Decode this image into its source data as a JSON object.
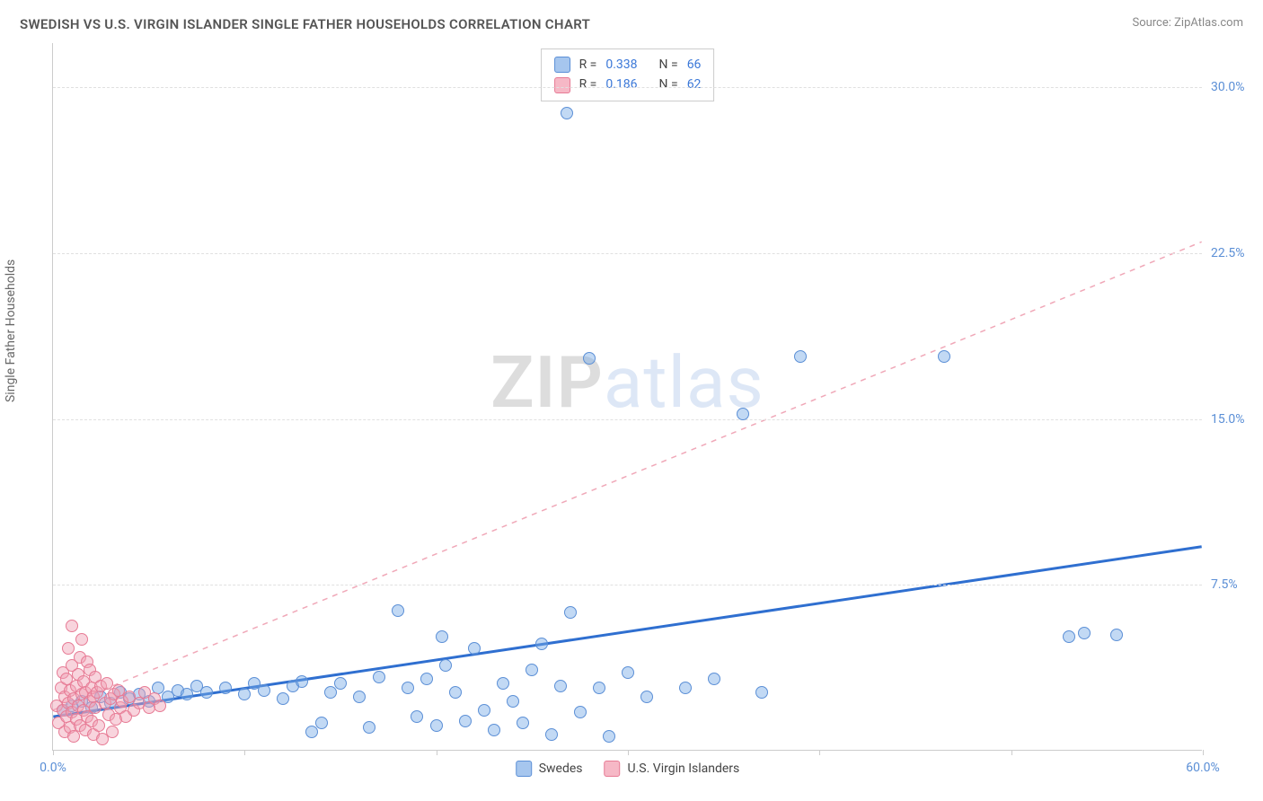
{
  "title": "SWEDISH VS U.S. VIRGIN ISLANDER SINGLE FATHER HOUSEHOLDS CORRELATION CHART",
  "source": "Source: ZipAtlas.com",
  "y_axis_label": "Single Father Households",
  "watermark": {
    "part1": "ZIP",
    "part2": "atlas"
  },
  "chart": {
    "type": "scatter",
    "background_color": "#ffffff",
    "grid_color": "#e0e0e0",
    "axis_color": "#cccccc",
    "xlim": [
      0,
      60
    ],
    "ylim": [
      0,
      32
    ],
    "x_ticks": [
      0,
      10,
      20,
      30,
      40,
      50,
      60
    ],
    "x_tick_labels": [
      "0.0%",
      "",
      "",
      "",
      "",
      "",
      "60.0%"
    ],
    "y_ticks": [
      7.5,
      15.0,
      22.5,
      30.0
    ],
    "y_tick_labels": [
      "7.5%",
      "15.0%",
      "22.5%",
      "30.0%"
    ],
    "marker_radius": 7,
    "marker_stroke_width": 1.2,
    "title_fontsize": 15,
    "label_fontsize": 14
  },
  "legend_top": {
    "rows": [
      {
        "swatch_fill": "#a6c6ee",
        "swatch_stroke": "#5b8fd6",
        "r_label": "R =",
        "r_value": "0.338",
        "n_label": "N =",
        "n_value": "66"
      },
      {
        "swatch_fill": "#f6b8c6",
        "swatch_stroke": "#e77b95",
        "r_label": "R =",
        "r_value": "0.186",
        "n_label": "N =",
        "n_value": "62"
      }
    ]
  },
  "legend_bottom": {
    "items": [
      {
        "swatch_fill": "#a6c6ee",
        "swatch_stroke": "#5b8fd6",
        "label": "Swedes"
      },
      {
        "swatch_fill": "#f6b8c6",
        "swatch_stroke": "#e77b95",
        "label": "U.S. Virgin Islanders"
      }
    ]
  },
  "series": [
    {
      "name": "Swedes",
      "marker_fill": "rgba(120,170,230,0.45)",
      "marker_stroke": "#5b8fd6",
      "trend": {
        "type": "solid",
        "color": "#2f6fd0",
        "width": 3,
        "x1": 0,
        "y1": 1.5,
        "x2": 60,
        "y2": 9.2
      },
      "points": [
        [
          0.5,
          1.8
        ],
        [
          1.0,
          2.0
        ],
        [
          1.5,
          2.2
        ],
        [
          2.0,
          1.9
        ],
        [
          2.5,
          2.4
        ],
        [
          3.0,
          2.1
        ],
        [
          3.5,
          2.6
        ],
        [
          4.0,
          2.3
        ],
        [
          4.5,
          2.5
        ],
        [
          5.0,
          2.2
        ],
        [
          5.5,
          2.8
        ],
        [
          6.0,
          2.4
        ],
        [
          6.5,
          2.7
        ],
        [
          7.0,
          2.5
        ],
        [
          7.5,
          2.9
        ],
        [
          8.0,
          2.6
        ],
        [
          9.0,
          2.8
        ],
        [
          10.0,
          2.5
        ],
        [
          10.5,
          3.0
        ],
        [
          11.0,
          2.7
        ],
        [
          12.0,
          2.3
        ],
        [
          12.5,
          2.9
        ],
        [
          13.0,
          3.1
        ],
        [
          13.5,
          0.8
        ],
        [
          14.0,
          1.2
        ],
        [
          14.5,
          2.6
        ],
        [
          15.0,
          3.0
        ],
        [
          16.0,
          2.4
        ],
        [
          16.5,
          1.0
        ],
        [
          17.0,
          3.3
        ],
        [
          18.0,
          6.3
        ],
        [
          18.5,
          2.8
        ],
        [
          19.0,
          1.5
        ],
        [
          19.5,
          3.2
        ],
        [
          20.0,
          1.1
        ],
        [
          20.5,
          3.8
        ],
        [
          21.0,
          2.6
        ],
        [
          21.5,
          1.3
        ],
        [
          22.0,
          4.6
        ],
        [
          22.5,
          1.8
        ],
        [
          23.0,
          0.9
        ],
        [
          23.5,
          3.0
        ],
        [
          24.0,
          2.2
        ],
        [
          24.5,
          1.2
        ],
        [
          25.0,
          3.6
        ],
        [
          25.5,
          4.8
        ],
        [
          26.0,
          0.7
        ],
        [
          26.5,
          2.9
        ],
        [
          27.0,
          6.2
        ],
        [
          27.5,
          1.7
        ],
        [
          28.0,
          17.7
        ],
        [
          28.5,
          2.8
        ],
        [
          29.0,
          0.6
        ],
        [
          30.0,
          3.5
        ],
        [
          31.0,
          2.4
        ],
        [
          33.0,
          2.8
        ],
        [
          34.5,
          3.2
        ],
        [
          36.0,
          15.2
        ],
        [
          37.0,
          2.6
        ],
        [
          39.0,
          17.8
        ],
        [
          46.5,
          17.8
        ],
        [
          53.0,
          5.1
        ],
        [
          53.8,
          5.3
        ],
        [
          55.5,
          5.2
        ],
        [
          26.8,
          28.8
        ],
        [
          20.3,
          5.1
        ]
      ]
    },
    {
      "name": "U.S. Virgin Islanders",
      "marker_fill": "rgba(240,160,180,0.45)",
      "marker_stroke": "#e77b95",
      "trend": {
        "type": "dashed",
        "color": "#f0a8b8",
        "width": 1.5,
        "x1": 0,
        "y1": 1.8,
        "x2": 60,
        "y2": 23.0
      },
      "points": [
        [
          0.2,
          2.0
        ],
        [
          0.3,
          1.2
        ],
        [
          0.4,
          2.8
        ],
        [
          0.5,
          1.8
        ],
        [
          0.5,
          3.5
        ],
        [
          0.6,
          0.8
        ],
        [
          0.6,
          2.4
        ],
        [
          0.7,
          1.5
        ],
        [
          0.7,
          3.2
        ],
        [
          0.8,
          2.1
        ],
        [
          0.8,
          4.6
        ],
        [
          0.9,
          1.0
        ],
        [
          0.9,
          2.7
        ],
        [
          1.0,
          1.7
        ],
        [
          1.0,
          3.8
        ],
        [
          1.0,
          5.6
        ],
        [
          1.1,
          2.3
        ],
        [
          1.1,
          0.6
        ],
        [
          1.2,
          2.9
        ],
        [
          1.2,
          1.4
        ],
        [
          1.3,
          3.4
        ],
        [
          1.3,
          2.0
        ],
        [
          1.4,
          4.2
        ],
        [
          1.4,
          1.1
        ],
        [
          1.5,
          2.5
        ],
        [
          1.5,
          5.0
        ],
        [
          1.6,
          1.8
        ],
        [
          1.6,
          3.1
        ],
        [
          1.7,
          0.9
        ],
        [
          1.7,
          2.6
        ],
        [
          1.8,
          4.0
        ],
        [
          1.8,
          1.5
        ],
        [
          1.9,
          2.2
        ],
        [
          1.9,
          3.6
        ],
        [
          2.0,
          1.3
        ],
        [
          2.0,
          2.8
        ],
        [
          2.1,
          0.7
        ],
        [
          2.1,
          2.4
        ],
        [
          2.2,
          3.3
        ],
        [
          2.2,
          1.9
        ],
        [
          2.3,
          2.6
        ],
        [
          2.4,
          1.1
        ],
        [
          2.5,
          2.9
        ],
        [
          2.6,
          0.5
        ],
        [
          2.7,
          2.1
        ],
        [
          2.8,
          3.0
        ],
        [
          2.9,
          1.6
        ],
        [
          3.0,
          2.3
        ],
        [
          3.1,
          0.8
        ],
        [
          3.2,
          2.5
        ],
        [
          3.3,
          1.4
        ],
        [
          3.4,
          2.7
        ],
        [
          3.5,
          1.9
        ],
        [
          3.6,
          2.2
        ],
        [
          3.8,
          1.5
        ],
        [
          4.0,
          2.4
        ],
        [
          4.2,
          1.8
        ],
        [
          4.5,
          2.1
        ],
        [
          4.8,
          2.6
        ],
        [
          5.0,
          1.9
        ],
        [
          5.3,
          2.3
        ],
        [
          5.6,
          2.0
        ]
      ]
    }
  ]
}
